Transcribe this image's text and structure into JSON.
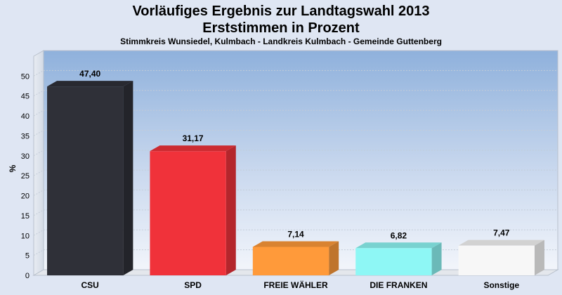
{
  "chart_data": {
    "type": "bar",
    "title": "Vorläufiges Ergebnis zur Landtagswahl 2013",
    "title_line2": "Erststimmen in Prozent",
    "subtitle": "Stimmkreis Wunsiedel, Kulmbach - Landkreis Kulmbach - Gemeinde Guttenberg",
    "ylabel": "%",
    "xlabel": "",
    "ylim": [
      0,
      55
    ],
    "yticks": [
      0,
      5,
      10,
      15,
      20,
      25,
      30,
      35,
      40,
      45,
      50
    ],
    "categories": [
      "CSU",
      "SPD",
      "FREIE WÄHLER",
      "DIE FRANKEN",
      "Sonstige"
    ],
    "values": [
      47.4,
      31.17,
      7.14,
      6.82,
      7.47
    ],
    "value_labels": [
      "47,40",
      "31,17",
      "7,14",
      "6,82",
      "7,47"
    ],
    "colors": [
      "#2f3038",
      "#f0323a",
      "#ff9a3a",
      "#8ef7f5",
      "#f7f7f7"
    ],
    "grid": true,
    "legend": "none"
  }
}
